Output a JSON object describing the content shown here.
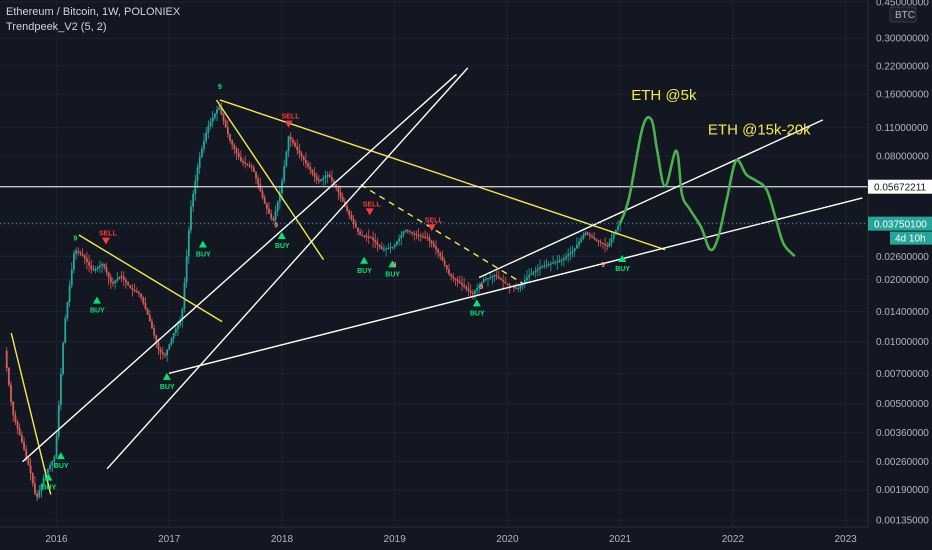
{
  "header": {
    "symbol_line": "Ethereum / Bitcoin, 1W, POLONIEX",
    "indicator_line": "Trendpeek_V2 (5, 2)"
  },
  "currency_badge": "BTC",
  "price_labels": {
    "level": "0.05672211",
    "last": "0.03750100",
    "countdown": "4d 10h"
  },
  "annotations": [
    "ETH @5k",
    "ETH @15k-20k"
  ],
  "signals": {
    "buy": "BUY",
    "sell": "SELL",
    "nine": "9"
  },
  "colors": {
    "background": "#131722",
    "up_candle": "#26a69a",
    "down_candle": "#ef5350",
    "trendline_yellow": "#f5e94a",
    "trendline_white": "#ffffff",
    "projection": "#4caf50",
    "buy": "#00e676",
    "sell": "#ff3b3b"
  },
  "chart_data": {
    "type": "line",
    "title": "Ethereum / Bitcoin, 1W, POLONIEX",
    "y_scale": "log",
    "ylim": [
      0.00125,
      0.46
    ],
    "y_ticks": [
      "0.45000000",
      "0.30000000",
      "0.22000000",
      "0.16000000",
      "0.11000000",
      "0.08000000",
      "0.05600000",
      "0.03800000",
      "0.02600000",
      "0.02000000",
      "0.01400000",
      "0.01000000",
      "0.00700000",
      "0.00500000",
      "0.00360000",
      "0.00260000",
      "0.00190000",
      "0.00135000"
    ],
    "x_ticks": [
      "2016",
      "2017",
      "2018",
      "2019",
      "2020",
      "2021",
      "2022",
      "2023"
    ],
    "xlim": [
      2015.5,
      2023.2
    ],
    "price_series": {
      "name": "ETH/BTC",
      "x": [
        2015.55,
        2015.62,
        2015.7,
        2015.78,
        2015.83,
        2015.9,
        2016.0,
        2016.08,
        2016.17,
        2016.25,
        2016.33,
        2016.42,
        2016.5,
        2016.58,
        2016.67,
        2016.75,
        2016.83,
        2016.92,
        2016.97,
        2017.05,
        2017.12,
        2017.2,
        2017.27,
        2017.35,
        2017.45,
        2017.55,
        2017.65,
        2017.75,
        2017.85,
        2017.93,
        2018.0,
        2018.07,
        2018.15,
        2018.25,
        2018.33,
        2018.42,
        2018.5,
        2018.6,
        2018.7,
        2018.8,
        2018.9,
        2019.0,
        2019.1,
        2019.2,
        2019.3,
        2019.4,
        2019.5,
        2019.6,
        2019.7,
        2019.8,
        2019.9,
        2020.0,
        2020.1,
        2020.2,
        2020.3,
        2020.4,
        2020.5,
        2020.6,
        2020.7,
        2020.8,
        2020.9,
        2021.0
      ],
      "values": [
        0.009,
        0.0045,
        0.0033,
        0.0023,
        0.0017,
        0.0022,
        0.0028,
        0.012,
        0.028,
        0.026,
        0.022,
        0.024,
        0.019,
        0.021,
        0.018,
        0.017,
        0.013,
        0.009,
        0.0085,
        0.011,
        0.013,
        0.044,
        0.075,
        0.11,
        0.14,
        0.095,
        0.075,
        0.07,
        0.048,
        0.038,
        0.055,
        0.1,
        0.085,
        0.07,
        0.06,
        0.065,
        0.055,
        0.042,
        0.033,
        0.032,
        0.028,
        0.029,
        0.035,
        0.033,
        0.032,
        0.027,
        0.021,
        0.019,
        0.017,
        0.02,
        0.021,
        0.019,
        0.018,
        0.021,
        0.023,
        0.024,
        0.025,
        0.028,
        0.034,
        0.031,
        0.029,
        0.0375
      ]
    },
    "projection_series": {
      "x": [
        2021.0,
        2021.08,
        2021.2,
        2021.28,
        2021.33,
        2021.4,
        2021.5,
        2021.55,
        2021.62,
        2021.72,
        2021.8,
        2021.87,
        2021.95,
        2022.03,
        2022.12,
        2022.2,
        2022.3,
        2022.38,
        2022.45,
        2022.55
      ],
      "values": [
        0.0375,
        0.05,
        0.11,
        0.12,
        0.085,
        0.057,
        0.085,
        0.052,
        0.044,
        0.036,
        0.028,
        0.032,
        0.05,
        0.076,
        0.065,
        0.061,
        0.055,
        0.04,
        0.03,
        0.026
      ]
    },
    "trendlines": [
      {
        "color": "yellow",
        "from": [
          2015.6,
          0.011
        ],
        "to": [
          2015.95,
          0.0018
        ]
      },
      {
        "color": "yellow",
        "from": [
          2016.2,
          0.033
        ],
        "to": [
          2017.47,
          0.0125
        ]
      },
      {
        "color": "yellow",
        "from": [
          2017.42,
          0.15
        ],
        "to": [
          2018.37,
          0.025
        ]
      },
      {
        "color": "yellow",
        "from": [
          2017.45,
          0.15
        ],
        "to": [
          2021.4,
          0.028
        ]
      },
      {
        "color": "yellow",
        "style": "dashed",
        "from": [
          2018.7,
          0.058
        ],
        "to": [
          2020.15,
          0.019
        ]
      },
      {
        "color": "white",
        "from": [
          2015.7,
          0.0026
        ],
        "to": [
          2019.55,
          0.2
        ]
      },
      {
        "color": "white",
        "from": [
          2016.45,
          0.0024
        ],
        "to": [
          2019.65,
          0.215
        ]
      },
      {
        "color": "white",
        "from": [
          2017.0,
          0.007
        ],
        "to": [
          2023.15,
          0.05
        ]
      },
      {
        "color": "white",
        "from": [
          2019.75,
          0.0205
        ],
        "to": [
          2022.8,
          0.12
        ]
      }
    ],
    "horizontal_levels": [
      0.05672211
    ],
    "grid": true,
    "legend": "none"
  }
}
